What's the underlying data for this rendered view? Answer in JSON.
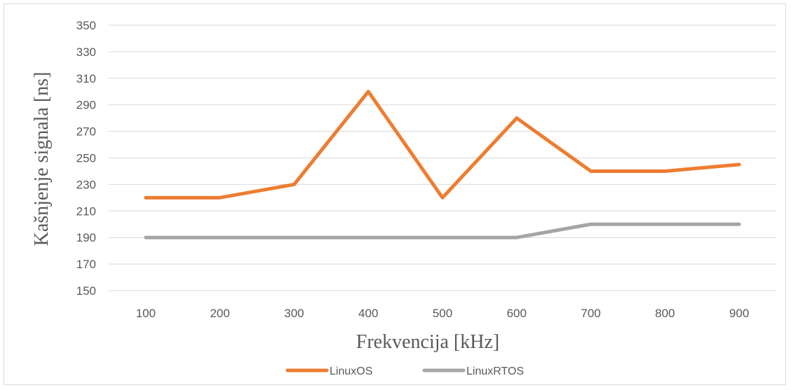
{
  "chart_data": {
    "type": "line",
    "title": "",
    "xlabel": "Frekvencija [kHz]",
    "ylabel": "Kašnjenje signala [ns]",
    "categories": [
      "100",
      "200",
      "300",
      "400",
      "500",
      "600",
      "700",
      "800",
      "900"
    ],
    "ylim": [
      150,
      350
    ],
    "yticks": [
      150,
      170,
      190,
      210,
      230,
      250,
      270,
      290,
      310,
      330,
      350
    ],
    "grid": true,
    "legend_position": "bottom",
    "series": [
      {
        "name": "LinuxOS",
        "color": "#ED7D31",
        "values": [
          220,
          220,
          230,
          300,
          220,
          280,
          240,
          240,
          245
        ]
      },
      {
        "name": "LinuxRTOS",
        "color": "#A5A5A5",
        "values": [
          190,
          190,
          190,
          190,
          190,
          190,
          200,
          200,
          200
        ]
      }
    ]
  }
}
